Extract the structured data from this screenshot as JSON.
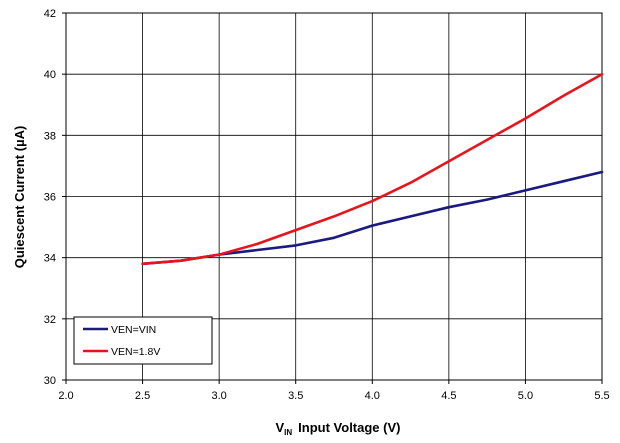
{
  "chart_data": {
    "type": "line",
    "title": "",
    "xlabel_sub": "V",
    "xlabel_subscript": "IN",
    "xlabel_rest": "Input Voltage (V)",
    "ylabel": "Quiescent Current (µA)",
    "xlim": [
      2.0,
      5.5
    ],
    "ylim": [
      30,
      42
    ],
    "x_ticks": [
      "2.0",
      "2.5",
      "3.0",
      "3.5",
      "4.0",
      "4.5",
      "5.0",
      "5.5"
    ],
    "y_ticks": [
      "30",
      "32",
      "34",
      "36",
      "38",
      "40",
      "42"
    ],
    "grid": true,
    "legend_position": "bottom-left",
    "series": [
      {
        "name": "VEN=VIN",
        "color": "#1a1a80",
        "x": [
          2.5,
          2.75,
          3.0,
          3.25,
          3.5,
          3.75,
          4.0,
          4.25,
          4.5,
          4.75,
          5.0,
          5.25,
          5.5
        ],
        "y": [
          33.8,
          33.9,
          34.1,
          34.25,
          34.4,
          34.65,
          35.05,
          35.35,
          35.65,
          35.9,
          36.2,
          36.5,
          36.8
        ]
      },
      {
        "name": "VEN=1.8V",
        "color": "#e8141c",
        "x": [
          2.5,
          2.75,
          3.0,
          3.25,
          3.5,
          3.75,
          4.0,
          4.25,
          4.5,
          4.75,
          5.0,
          5.25,
          5.5
        ],
        "y": [
          33.8,
          33.9,
          34.1,
          34.45,
          34.9,
          35.35,
          35.85,
          36.45,
          37.15,
          37.85,
          38.55,
          39.3,
          40.0
        ]
      }
    ]
  }
}
